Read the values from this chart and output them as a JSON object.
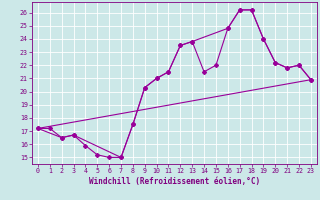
{
  "bg_color": "#cce8e8",
  "line_color": "#990099",
  "xlim": [
    -0.5,
    23.5
  ],
  "ylim": [
    14.5,
    26.8
  ],
  "xlabel": "Windchill (Refroidissement éolien,°C)",
  "curve1": {
    "x": [
      0,
      1,
      2,
      3,
      4,
      5,
      6,
      7,
      8,
      9,
      10,
      11,
      12,
      13,
      14,
      15,
      16,
      17,
      18,
      19,
      20,
      21,
      22,
      23
    ],
    "y": [
      17.2,
      17.2,
      16.5,
      16.7,
      15.9,
      15.2,
      15.0,
      15.0,
      17.5,
      20.3,
      21.0,
      21.5,
      23.5,
      23.8,
      21.5,
      22.0,
      24.8,
      26.2,
      26.2,
      24.0,
      22.2,
      21.8,
      22.0,
      20.9
    ]
  },
  "curve2": {
    "x": [
      0,
      2,
      3,
      7,
      8,
      9,
      10,
      11,
      12,
      13,
      16,
      17,
      18,
      19,
      20,
      21,
      22,
      23
    ],
    "y": [
      17.2,
      16.5,
      16.7,
      15.0,
      17.5,
      20.3,
      21.0,
      21.5,
      23.5,
      23.8,
      24.8,
      26.2,
      26.2,
      24.0,
      22.2,
      21.8,
      22.0,
      20.9
    ]
  },
  "curve3": {
    "x": [
      0,
      23
    ],
    "y": [
      17.2,
      20.9
    ]
  }
}
